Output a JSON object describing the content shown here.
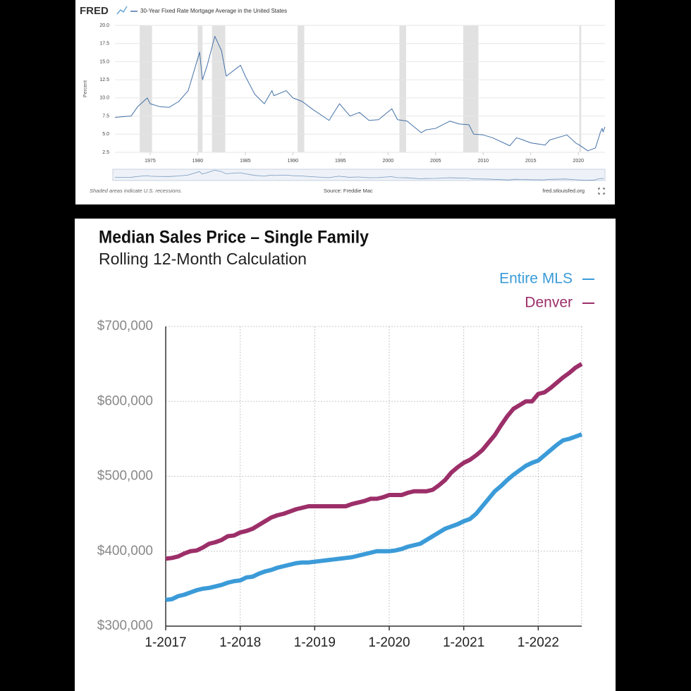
{
  "chart_data": [
    {
      "type": "line",
      "logo": "FRED",
      "y_label": "Percent",
      "note": "Shaded areas indicate U.S. recessions.",
      "source": "Source: Freddie Mac",
      "site": "fred.stlouisfed.org",
      "x": [
        1971.3,
        1972,
        1973,
        1973.7,
        1974.7,
        1975,
        1976,
        1977,
        1978,
        1979,
        1980.2,
        1980.5,
        1981,
        1981.8,
        1982.5,
        1983,
        1984.5,
        1985,
        1986,
        1987,
        1987.8,
        1988,
        1989.3,
        1990,
        1991,
        1992,
        1993.8,
        1994.9,
        1996,
        1997,
        1998,
        1999,
        2000.4,
        2001,
        2002,
        2003.5,
        2004,
        2005,
        2006.5,
        2007.5,
        2008.5,
        2009,
        2010,
        2011,
        2012.8,
        2013.5,
        2014,
        2015,
        2016.5,
        2017,
        2018.8,
        2019.8,
        2020,
        2021,
        2021.8,
        2022.3,
        2022.5,
        2022.6,
        2022.8
      ],
      "series": [
        {
          "name": "30-Year Fixed Rate Mortgage Average in the United States",
          "color": "#4572a7",
          "values": [
            7.3,
            7.4,
            7.5,
            8.8,
            10,
            9.2,
            8.8,
            8.7,
            9.5,
            11,
            16.3,
            12.5,
            14.5,
            18.5,
            16.5,
            13,
            14.5,
            13,
            10.5,
            9.2,
            11,
            10.3,
            11,
            10,
            9.5,
            8.5,
            6.9,
            9.2,
            7.5,
            8,
            6.9,
            7,
            8.5,
            7,
            6.8,
            5.2,
            5.6,
            5.8,
            6.8,
            6.4,
            6.3,
            5,
            4.9,
            4.5,
            3.4,
            4.5,
            4.3,
            3.8,
            3.5,
            4.2,
            4.9,
            3.7,
            3.6,
            2.7,
            3.1,
            5.2,
            5.8,
            5.3,
            6
          ]
        }
      ],
      "recessions": [
        [
          1973.9,
          1975.2
        ],
        [
          1980,
          1980.5
        ],
        [
          1981.5,
          1982.9
        ],
        [
          1990.5,
          1991.2
        ],
        [
          2001.2,
          2001.9
        ],
        [
          2007.9,
          2009.5
        ],
        [
          2020.1,
          2020.3
        ]
      ],
      "recession_color": "#e1e1e1",
      "xlim": [
        1971.3,
        2022.8
      ],
      "xticks": [
        1975,
        1980,
        1985,
        1990,
        1995,
        2000,
        2005,
        2010,
        2015,
        2020
      ],
      "ylim": [
        2.5,
        20
      ],
      "yticks": [
        2.5,
        {
          "value": 5,
          "label": "5.0"
        },
        7.5,
        {
          "value": 10,
          "label": "10.0"
        },
        12.5,
        {
          "value": 15,
          "label": "15.0"
        },
        17.5,
        {
          "value": 20,
          "label": "20.0"
        }
      ],
      "grid": true
    },
    {
      "type": "line",
      "title": "Median Sales Price – Single Family",
      "subtitle": "Rolling 12-Month Calculation",
      "categories": [
        "1-2017",
        null,
        null,
        null,
        null,
        null,
        null,
        null,
        null,
        null,
        null,
        null,
        "1-2018",
        null,
        null,
        null,
        null,
        null,
        null,
        null,
        null,
        null,
        null,
        null,
        "1-2019",
        null,
        null,
        null,
        null,
        null,
        null,
        null,
        null,
        null,
        null,
        null,
        "1-2020",
        null,
        null,
        null,
        null,
        null,
        null,
        null,
        null,
        null,
        null,
        null,
        "1-2021",
        null,
        null,
        null,
        null,
        null,
        null,
        null,
        null,
        null,
        null,
        null,
        "1-2022",
        null,
        null,
        null,
        null,
        null,
        null,
        null
      ],
      "series": [
        {
          "name": "Entire MLS",
          "color": "#3b9bd8",
          "values": [
            335000,
            336000,
            340000,
            342000,
            345000,
            348000,
            350000,
            351000,
            353000,
            355000,
            358000,
            360000,
            361000,
            365000,
            366000,
            370000,
            373000,
            375000,
            378000,
            380000,
            382000,
            384000,
            385000,
            385000,
            386000,
            387000,
            388000,
            389000,
            390000,
            391000,
            392000,
            394000,
            396000,
            398000,
            400000,
            400000,
            400000,
            401000,
            403000,
            406000,
            408000,
            410000,
            415000,
            420000,
            425000,
            430000,
            433000,
            436000,
            440000,
            443000,
            450000,
            460000,
            470000,
            480000,
            487000,
            495000,
            502000,
            508000,
            514000,
            518000,
            521000,
            528000,
            535000,
            542000,
            548000,
            550000,
            553000,
            556000
          ]
        },
        {
          "name": "Denver",
          "color": "#9c2f69",
          "values": [
            390000,
            391000,
            393000,
            397000,
            400000,
            401000,
            405000,
            410000,
            412000,
            415000,
            420000,
            421000,
            425000,
            427000,
            430000,
            435000,
            440000,
            445000,
            448000,
            450000,
            453000,
            456000,
            458000,
            460000,
            460000,
            460000,
            460000,
            460000,
            460000,
            460000,
            463000,
            465000,
            467000,
            470000,
            470000,
            472000,
            475000,
            475000,
            475000,
            478000,
            480000,
            480000,
            480000,
            482000,
            488000,
            495000,
            505000,
            512000,
            518000,
            522000,
            528000,
            535000,
            545000,
            555000,
            568000,
            580000,
            590000,
            595000,
            600000,
            600000,
            610000,
            612000,
            618000,
            625000,
            632000,
            638000,
            645000,
            650000
          ]
        }
      ],
      "ylim": [
        300000,
        700000
      ],
      "yticks": [
        {
          "value": 300000,
          "label": "$300,000"
        },
        {
          "value": 400000,
          "label": "$400,000"
        },
        {
          "value": 500000,
          "label": "$500,000"
        },
        {
          "value": 600000,
          "label": "$600,000"
        },
        {
          "value": 700000,
          "label": "$700,000"
        }
      ],
      "grid": true,
      "legend": "top-right"
    }
  ]
}
